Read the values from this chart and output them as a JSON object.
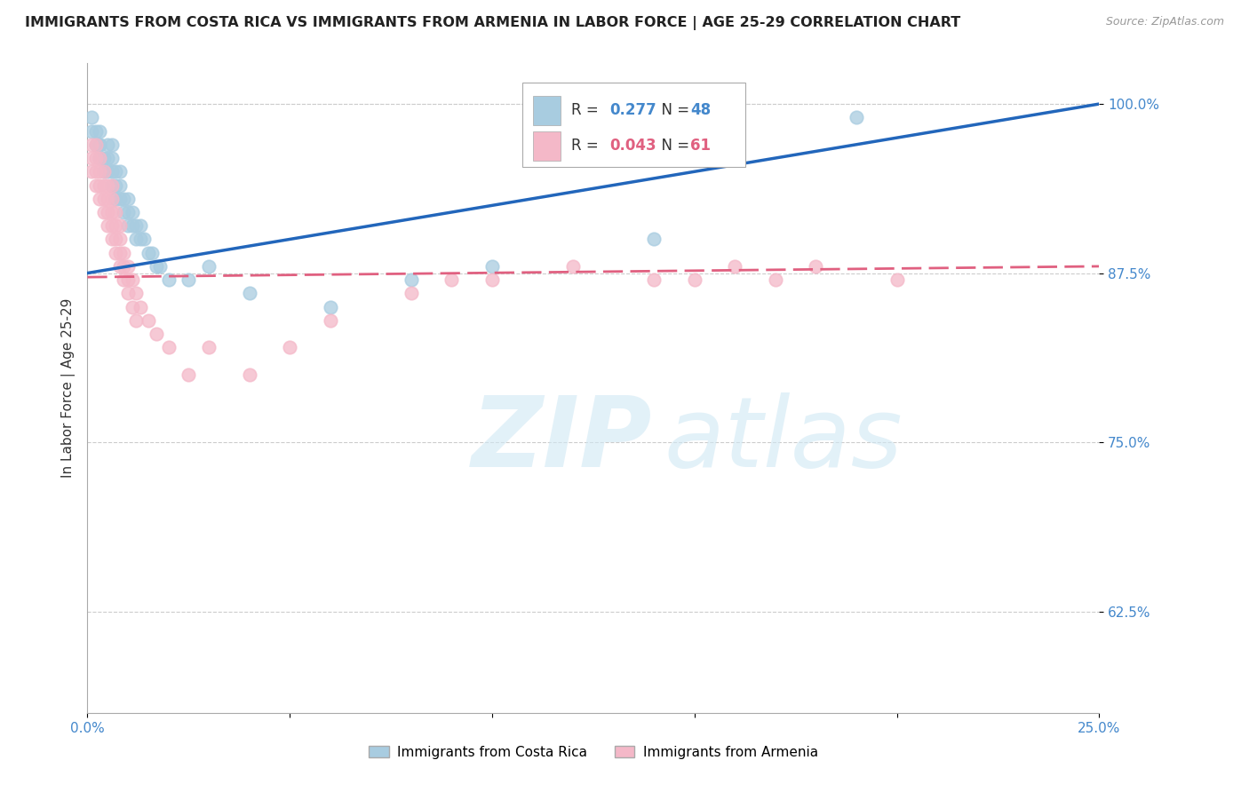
{
  "title": "IMMIGRANTS FROM COSTA RICA VS IMMIGRANTS FROM ARMENIA IN LABOR FORCE | AGE 25-29 CORRELATION CHART",
  "source": "Source: ZipAtlas.com",
  "ylabel": "In Labor Force | Age 25-29",
  "legend_entries": [
    "Immigrants from Costa Rica",
    "Immigrants from Armenia"
  ],
  "r_costa_rica": 0.277,
  "n_costa_rica": 48,
  "r_armenia": 0.043,
  "n_armenia": 61,
  "xlim": [
    0.0,
    0.25
  ],
  "ylim": [
    0.55,
    1.03
  ],
  "yticks": [
    0.625,
    0.75,
    0.875,
    1.0
  ],
  "ytick_labels": [
    "62.5%",
    "75.0%",
    "87.5%",
    "100.0%"
  ],
  "xticks": [
    0.0,
    0.05,
    0.1,
    0.15,
    0.2,
    0.25
  ],
  "color_costa_rica": "#a8cce0",
  "color_armenia": "#f4b8c8",
  "trendline_color_costa_rica": "#2266bb",
  "trendline_color_armenia": "#e06080",
  "background_color": "#ffffff",
  "legend_r_color_blue": "#4488cc",
  "legend_r_color_pink": "#e06080",
  "costa_rica_x": [
    0.001,
    0.001,
    0.002,
    0.002,
    0.003,
    0.003,
    0.003,
    0.003,
    0.004,
    0.004,
    0.005,
    0.005,
    0.005,
    0.006,
    0.006,
    0.006,
    0.006,
    0.007,
    0.007,
    0.007,
    0.008,
    0.008,
    0.008,
    0.009,
    0.009,
    0.01,
    0.01,
    0.01,
    0.011,
    0.011,
    0.012,
    0.012,
    0.013,
    0.013,
    0.014,
    0.015,
    0.016,
    0.017,
    0.018,
    0.02,
    0.025,
    0.03,
    0.04,
    0.06,
    0.08,
    0.1,
    0.14,
    0.19
  ],
  "costa_rica_y": [
    0.99,
    0.98,
    0.97,
    0.98,
    0.97,
    0.97,
    0.96,
    0.98,
    0.95,
    0.96,
    0.95,
    0.96,
    0.97,
    0.94,
    0.95,
    0.96,
    0.97,
    0.93,
    0.94,
    0.95,
    0.93,
    0.94,
    0.95,
    0.92,
    0.93,
    0.91,
    0.92,
    0.93,
    0.91,
    0.92,
    0.9,
    0.91,
    0.9,
    0.91,
    0.9,
    0.89,
    0.89,
    0.88,
    0.88,
    0.87,
    0.87,
    0.88,
    0.86,
    0.85,
    0.87,
    0.88,
    0.9,
    0.99
  ],
  "armenia_x": [
    0.001,
    0.001,
    0.001,
    0.002,
    0.002,
    0.002,
    0.002,
    0.003,
    0.003,
    0.003,
    0.003,
    0.004,
    0.004,
    0.004,
    0.004,
    0.005,
    0.005,
    0.005,
    0.005,
    0.006,
    0.006,
    0.006,
    0.006,
    0.006,
    0.007,
    0.007,
    0.007,
    0.007,
    0.008,
    0.008,
    0.008,
    0.008,
    0.009,
    0.009,
    0.009,
    0.01,
    0.01,
    0.01,
    0.011,
    0.011,
    0.012,
    0.012,
    0.013,
    0.015,
    0.017,
    0.02,
    0.025,
    0.03,
    0.04,
    0.05,
    0.06,
    0.08,
    0.09,
    0.1,
    0.12,
    0.14,
    0.15,
    0.16,
    0.17,
    0.18,
    0.2
  ],
  "armenia_y": [
    0.97,
    0.96,
    0.95,
    0.94,
    0.95,
    0.96,
    0.97,
    0.93,
    0.94,
    0.95,
    0.96,
    0.92,
    0.93,
    0.94,
    0.95,
    0.91,
    0.92,
    0.93,
    0.94,
    0.9,
    0.91,
    0.92,
    0.93,
    0.94,
    0.89,
    0.9,
    0.91,
    0.92,
    0.88,
    0.89,
    0.9,
    0.91,
    0.87,
    0.88,
    0.89,
    0.86,
    0.87,
    0.88,
    0.85,
    0.87,
    0.84,
    0.86,
    0.85,
    0.84,
    0.83,
    0.82,
    0.8,
    0.82,
    0.8,
    0.82,
    0.84,
    0.86,
    0.87,
    0.87,
    0.88,
    0.87,
    0.87,
    0.88,
    0.87,
    0.88,
    0.87
  ]
}
